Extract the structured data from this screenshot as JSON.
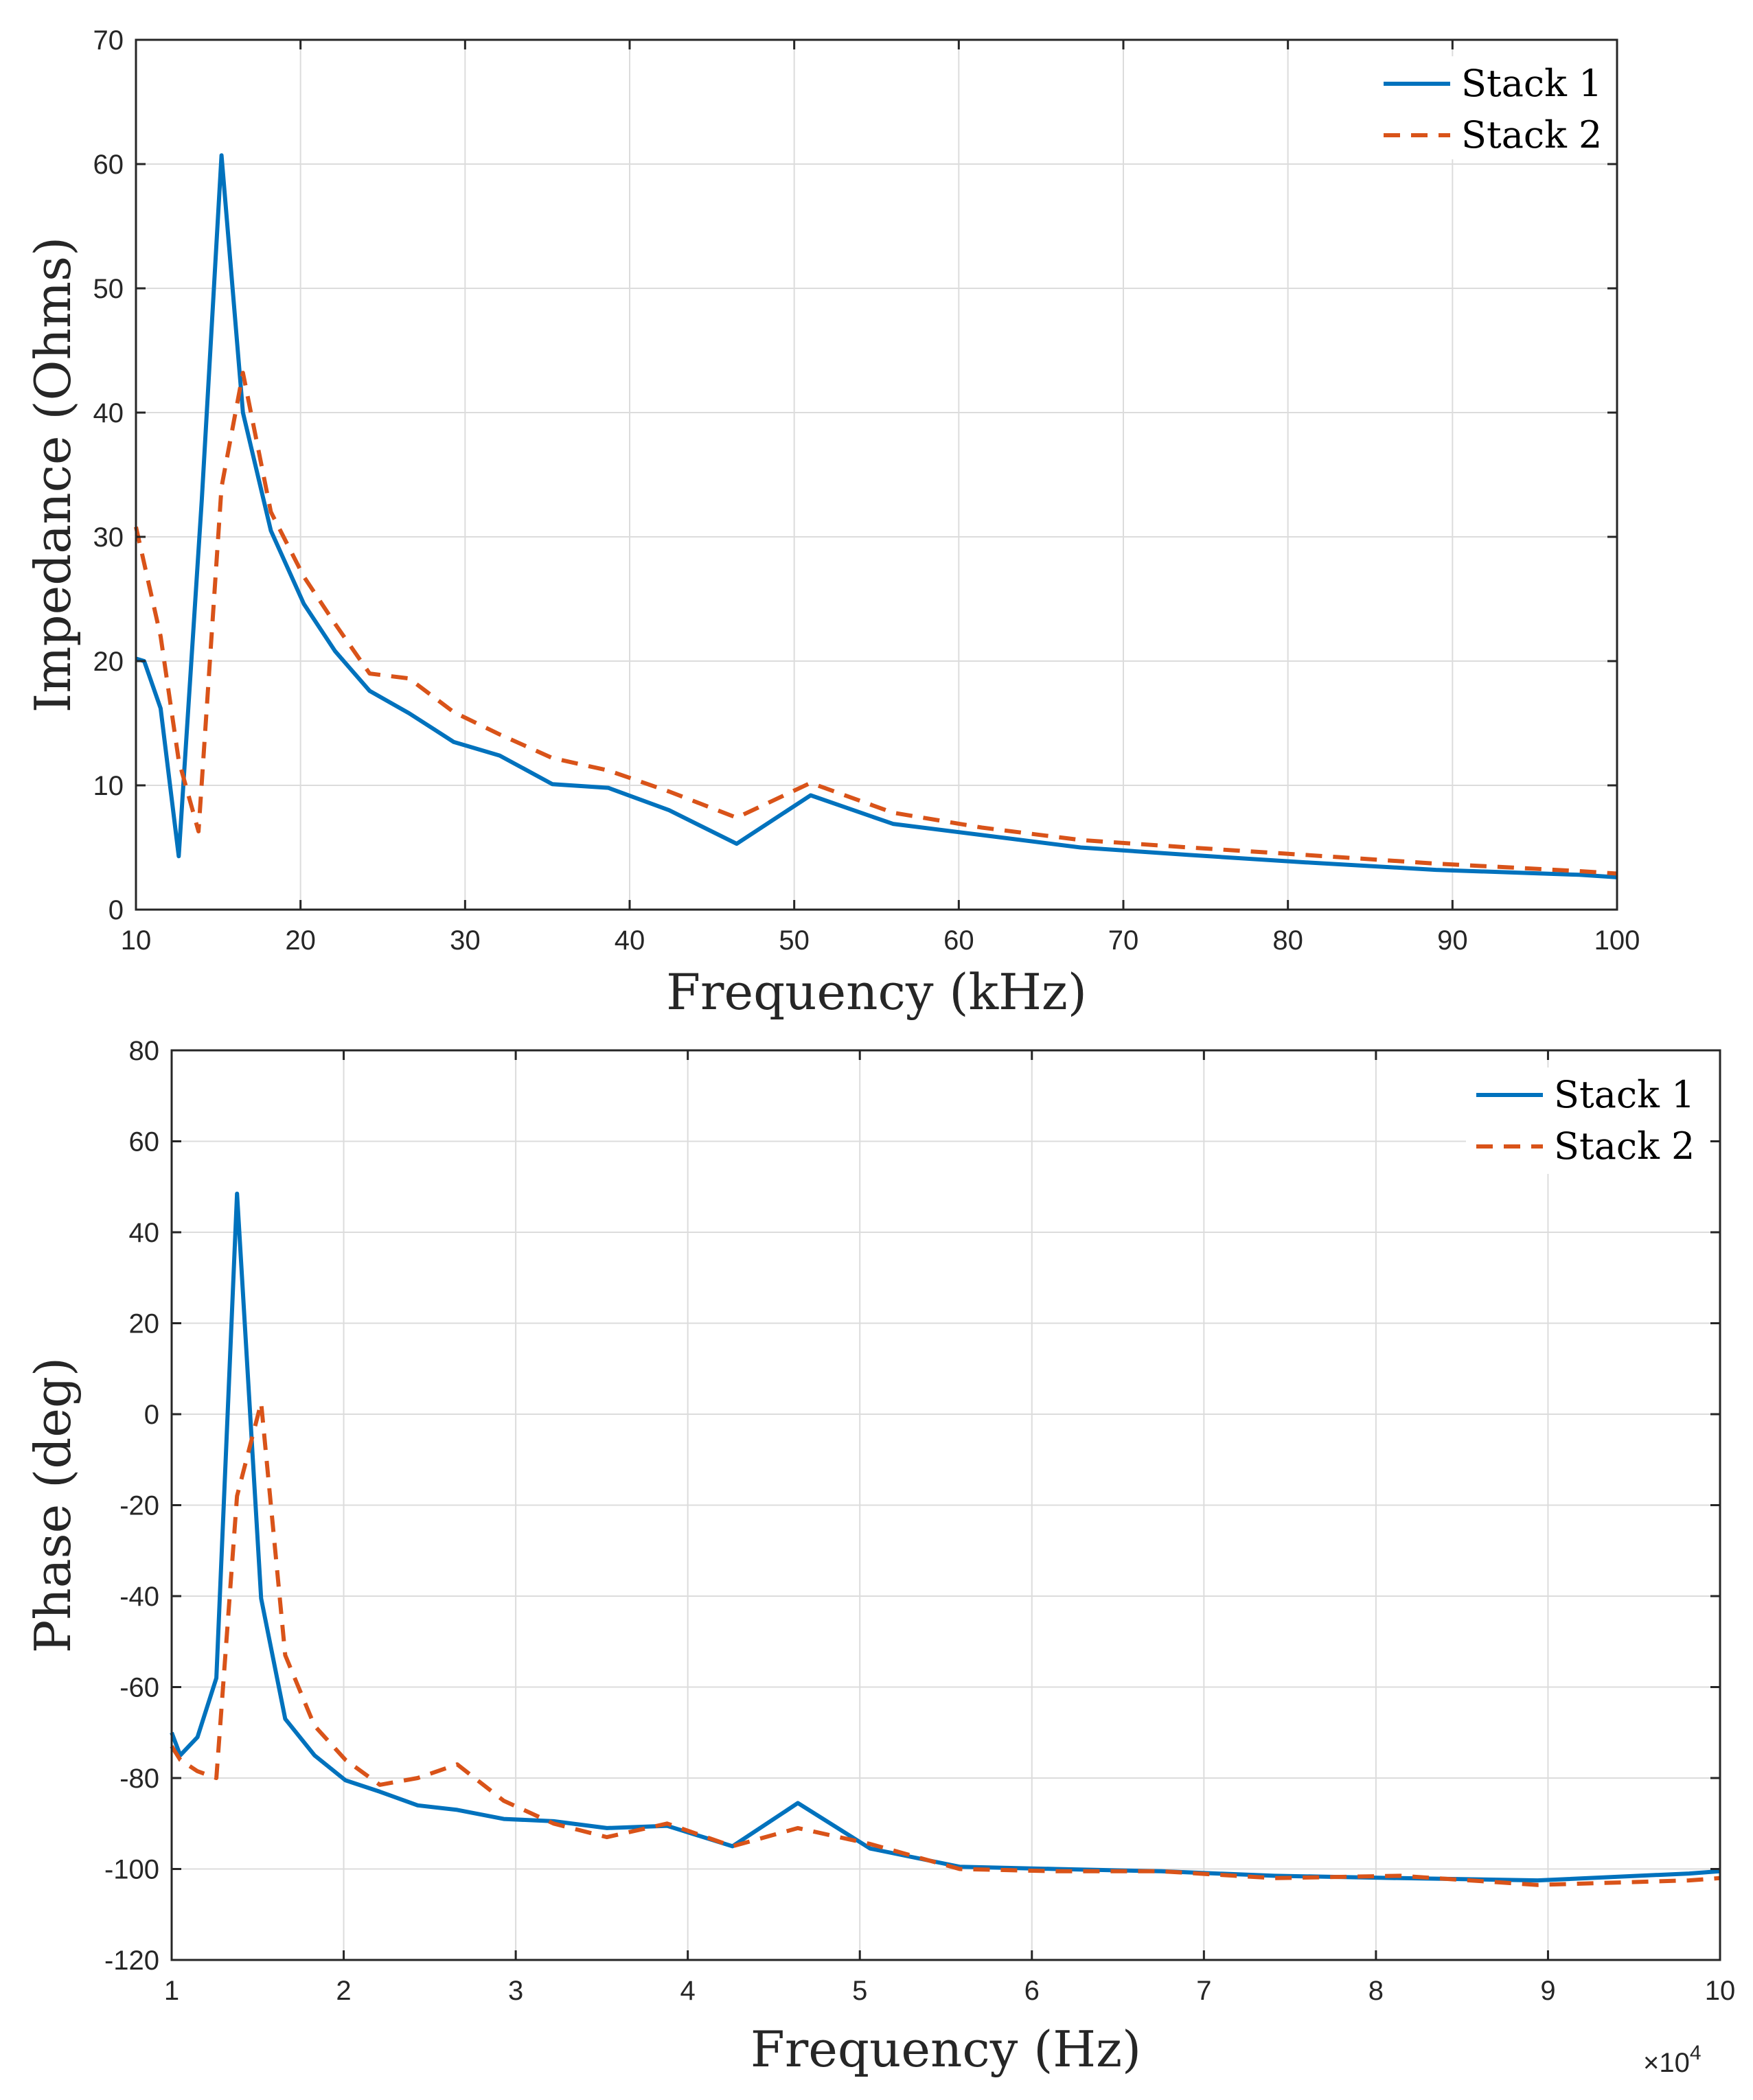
{
  "chart_data": [
    {
      "type": "line",
      "xlabel": "Frequency (kHz)",
      "ylabel": "Impedance (Ohms)",
      "xlim": [
        10,
        100
      ],
      "ylim": [
        0,
        70
      ],
      "xticks": [
        10,
        20,
        30,
        40,
        50,
        60,
        70,
        80,
        90,
        100
      ],
      "yticks": [
        0,
        10,
        20,
        30,
        40,
        50,
        60,
        70
      ],
      "grid": true,
      "legend_position": "top-right",
      "series": [
        {
          "name": "Stack 1",
          "color": "#0072BD",
          "style": "solid",
          "x": [
            10,
            10.5,
            11.5,
            12.6,
            14,
            15.2,
            16.5,
            18.2,
            20.2,
            22.1,
            24.2,
            26.6,
            29.3,
            32.1,
            35.3,
            38.7,
            42.4,
            46.5,
            51,
            56,
            61.4,
            67.4,
            74,
            81.1,
            89,
            97.7,
            100
          ],
          "y": [
            20.2,
            20,
            16.2,
            4.3,
            33,
            60.7,
            40,
            30.5,
            24.6,
            20.8,
            17.6,
            15.8,
            13.5,
            12.4,
            10.1,
            9.8,
            8,
            5.3,
            9.2,
            6.9,
            6,
            5,
            4.4,
            3.8,
            3.2,
            2.8,
            2.6
          ]
        },
        {
          "name": "Stack 2",
          "color": "#D95319",
          "style": "dashed",
          "x": [
            10,
            11.5,
            12.6,
            13.8,
            15.2,
            16.5,
            18.2,
            20.2,
            22.1,
            24.2,
            26.6,
            29.3,
            32.1,
            35.3,
            38.7,
            42.4,
            46.5,
            51,
            56,
            61.4,
            67.4,
            74,
            81.1,
            89,
            97.7,
            100
          ],
          "y": [
            30.8,
            22,
            12,
            6.3,
            34,
            43.2,
            32,
            26.8,
            23,
            19,
            18.6,
            15.9,
            14.1,
            12.2,
            11.2,
            9.5,
            7.4,
            10.2,
            7.8,
            6.6,
            5.6,
            5,
            4.4,
            3.7,
            3.1,
            2.9
          ]
        }
      ]
    },
    {
      "type": "line",
      "xlabel": "Frequency (Hz)",
      "ylabel": "Phase (deg)",
      "x_exponent_label": "×10",
      "x_exponent_power": "4",
      "xlim": [
        1,
        10
      ],
      "ylim": [
        -120,
        80
      ],
      "xticks": [
        1,
        2,
        3,
        4,
        5,
        6,
        7,
        8,
        9,
        10
      ],
      "yticks": [
        -120,
        -100,
        -80,
        -60,
        -40,
        -20,
        0,
        20,
        40,
        60,
        80
      ],
      "grid": true,
      "legend_position": "top-right",
      "series": [
        {
          "name": "Stack 1",
          "color": "#0072BD",
          "style": "solid",
          "x": [
            1,
            1.05,
            1.15,
            1.26,
            1.38,
            1.52,
            1.66,
            1.83,
            2.01,
            2.21,
            2.43,
            2.66,
            2.93,
            3.22,
            3.53,
            3.88,
            4.26,
            4.64,
            5.06,
            5.58,
            6.14,
            6.75,
            7.41,
            8.14,
            8.94,
            9.82,
            10
          ],
          "y": [
            -70,
            -75,
            -71,
            -58,
            48.5,
            -40.5,
            -67,
            -75,
            -80.5,
            -83,
            -86,
            -87,
            -89,
            -89.5,
            -91,
            -90.5,
            -95,
            -85.5,
            -95.5,
            -99.5,
            -100,
            -100.5,
            -101.5,
            -102,
            -102.5,
            -101,
            -100.5
          ]
        },
        {
          "name": "Stack 2",
          "color": "#D95319",
          "style": "dashed",
          "x": [
            1,
            1.05,
            1.15,
            1.26,
            1.38,
            1.52,
            1.66,
            1.83,
            2.01,
            2.21,
            2.43,
            2.66,
            2.93,
            3.22,
            3.53,
            3.88,
            4.26,
            4.64,
            5.06,
            5.58,
            6.14,
            6.75,
            7.41,
            8.14,
            8.94,
            9.82,
            10
          ],
          "y": [
            -73,
            -76,
            -78.5,
            -80,
            -18,
            2.5,
            -53,
            -68.5,
            -76,
            -81.5,
            -80,
            -77,
            -85,
            -90,
            -93,
            -90,
            -95,
            -91,
            -94.5,
            -100,
            -100.5,
            -100.5,
            -102,
            -101.5,
            -103.5,
            -102.5,
            -102
          ]
        }
      ]
    }
  ]
}
